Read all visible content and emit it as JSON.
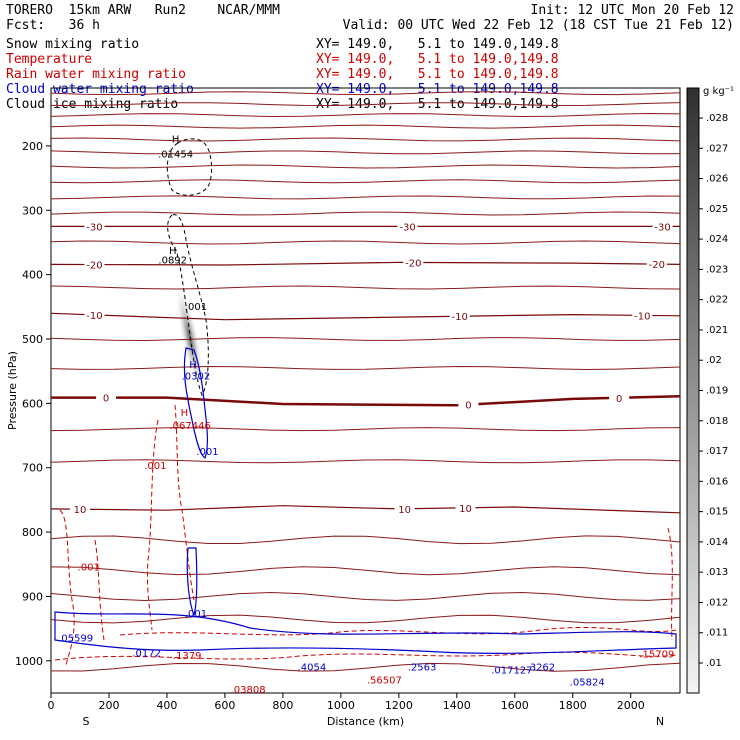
{
  "header": {
    "model": "TORERO  15km ARW   Run2    NCAR/MMM",
    "init": "Init: 12 UTC Mon 20 Feb 12",
    "fcst": "Fcst:   36 h",
    "valid": "Valid: 00 UTC Wed 22 Feb 12 (18 CST Tue 21 Feb 12)"
  },
  "fields": [
    {
      "name": "Snow mixing ratio",
      "xy": "XY= 149.0,   5.1 to 149.0,149.8",
      "color": "#000000"
    },
    {
      "name": "Temperature",
      "xy": "XY= 149.0,   5.1 to 149.0,149.8",
      "color": "#cc0000"
    },
    {
      "name": "Rain water mixing ratio",
      "xy": "XY= 149.0,   5.1 to 149.0,149.8",
      "color": "#cc0000"
    },
    {
      "name": "Cloud water mixing ratio",
      "xy": "XY= 149.0,   5.1 to 149.0,149.8",
      "color": "#0000cc"
    },
    {
      "name": "Cloud ice mixing ratio",
      "xy": "XY= 149.0,   5.1 to 149.0,149.8",
      "color": "#000000"
    }
  ],
  "chart_data": {
    "type": "cross-section",
    "xlabel": "Distance (km)",
    "ylabel": "Pressure (hPa)",
    "xlim": [
      0,
      2170
    ],
    "ylim": [
      1050,
      110
    ],
    "x_ticks": [
      0,
      200,
      400,
      600,
      800,
      1000,
      1200,
      1400,
      1600,
      1800,
      2000
    ],
    "y_ticks": [
      200,
      300,
      400,
      500,
      600,
      700,
      800,
      900,
      1000
    ],
    "x_end_labels": {
      "left": "S",
      "right": "N"
    },
    "colorbar": {
      "unit": "g kg⁻¹",
      "ticks": [
        ".01",
        ".011",
        ".012",
        ".013",
        ".014",
        ".015",
        ".016",
        ".017",
        ".018",
        ".019",
        ".02",
        ".021",
        ".022",
        ".023",
        ".024",
        ".025",
        ".026",
        ".027",
        ".028"
      ]
    },
    "temperature_contours": [
      {
        "level": "-30",
        "x": [
          0,
          600,
          1200,
          1800,
          2170
        ],
        "p": [
          325,
          325,
          325,
          325,
          325
        ],
        "labels": [
          {
            "x": 150,
            "text": "-30"
          },
          {
            "x": 1230,
            "text": "-30"
          },
          {
            "x": 2110,
            "text": "-30"
          }
        ]
      },
      {
        "level": "-20",
        "x": [
          0,
          600,
          1200,
          1800,
          2170
        ],
        "p": [
          384,
          385,
          381,
          382,
          384
        ],
        "labels": [
          {
            "x": 150,
            "text": "-20"
          },
          {
            "x": 1250,
            "text": "-20"
          },
          {
            "x": 2090,
            "text": "-20"
          }
        ]
      },
      {
        "level": "-10",
        "x": [
          0,
          600,
          1200,
          1800,
          2170
        ],
        "p": [
          460,
          470,
          466,
          462,
          464
        ],
        "labels": [
          {
            "x": 150,
            "text": "-10"
          },
          {
            "x": 1410,
            "text": "-10"
          },
          {
            "x": 2040,
            "text": "-10"
          }
        ]
      },
      {
        "level": "0",
        "x": [
          0,
          400,
          800,
          1400,
          1800,
          2170
        ],
        "p": [
          591,
          591,
          601,
          603,
          593,
          589
        ],
        "labels": [
          {
            "x": 190,
            "text": "0"
          },
          {
            "x": 1440,
            "text": "0"
          },
          {
            "x": 1960,
            "text": "0"
          }
        ]
      },
      {
        "level": "10",
        "x": [
          0,
          400,
          800,
          1200,
          1600,
          2170
        ],
        "p": [
          764,
          766,
          759,
          764,
          761,
          770
        ],
        "labels": [
          {
            "x": 100,
            "text": "10"
          },
          {
            "x": 1220,
            "text": "10"
          },
          {
            "x": 1430,
            "text": "10"
          }
        ]
      }
    ],
    "maxima_labels": [
      {
        "x": 430,
        "p": 195,
        "text": "H",
        "color": "#000000"
      },
      {
        "x": 430,
        "p": 218,
        "text": ".01454",
        "color": "#000000"
      },
      {
        "x": 420,
        "p": 368,
        "text": "H",
        "color": "#000000"
      },
      {
        "x": 420,
        "p": 383,
        "text": ".0892",
        "color": "#000000"
      },
      {
        "x": 500,
        "p": 455,
        "text": ".001",
        "color": "#000000"
      },
      {
        "x": 490,
        "p": 545,
        "text": "H",
        "color": "#0000cc"
      },
      {
        "x": 500,
        "p": 563,
        "text": ".0302",
        "color": "#0000cc"
      },
      {
        "x": 460,
        "p": 620,
        "text": "H",
        "color": "#cc0000"
      },
      {
        "x": 480,
        "p": 640,
        "text": ".067446",
        "color": "#cc0000"
      },
      {
        "x": 540,
        "p": 680,
        "text": ".001",
        "color": "#0000cc"
      },
      {
        "x": 360,
        "p": 702,
        "text": ".001",
        "color": "#cc0000"
      },
      {
        "x": 130,
        "p": 860,
        "text": ".001",
        "color": "#cc0000"
      },
      {
        "x": 500,
        "p": 932,
        "text": ".001",
        "color": "#0000cc"
      },
      {
        "x": 85,
        "p": 970,
        "text": ".05599",
        "color": "#0000cc"
      },
      {
        "x": 330,
        "p": 993,
        "text": ".0172",
        "color": "#0000cc"
      },
      {
        "x": 470,
        "p": 997,
        "text": ".1379",
        "color": "#cc0000"
      },
      {
        "x": 900,
        "p": 1015,
        "text": ".4054",
        "color": "#0000cc"
      },
      {
        "x": 1280,
        "p": 1015,
        "text": ".2563",
        "color": "#0000cc"
      },
      {
        "x": 1690,
        "p": 1015,
        "text": ".3262",
        "color": "#0000cc"
      },
      {
        "x": 1590,
        "p": 1020,
        "text": ".017127",
        "color": "#0000cc"
      },
      {
        "x": 1150,
        "p": 1035,
        "text": ".56507",
        "color": "#cc0000"
      },
      {
        "x": 680,
        "p": 1050,
        "text": ".03808",
        "color": "#cc0000"
      },
      {
        "x": 1850,
        "p": 1038,
        "text": ".05824",
        "color": "#0000cc"
      },
      {
        "x": 2090,
        "p": 995,
        "text": ".15709",
        "color": "#cc0000"
      }
    ]
  }
}
